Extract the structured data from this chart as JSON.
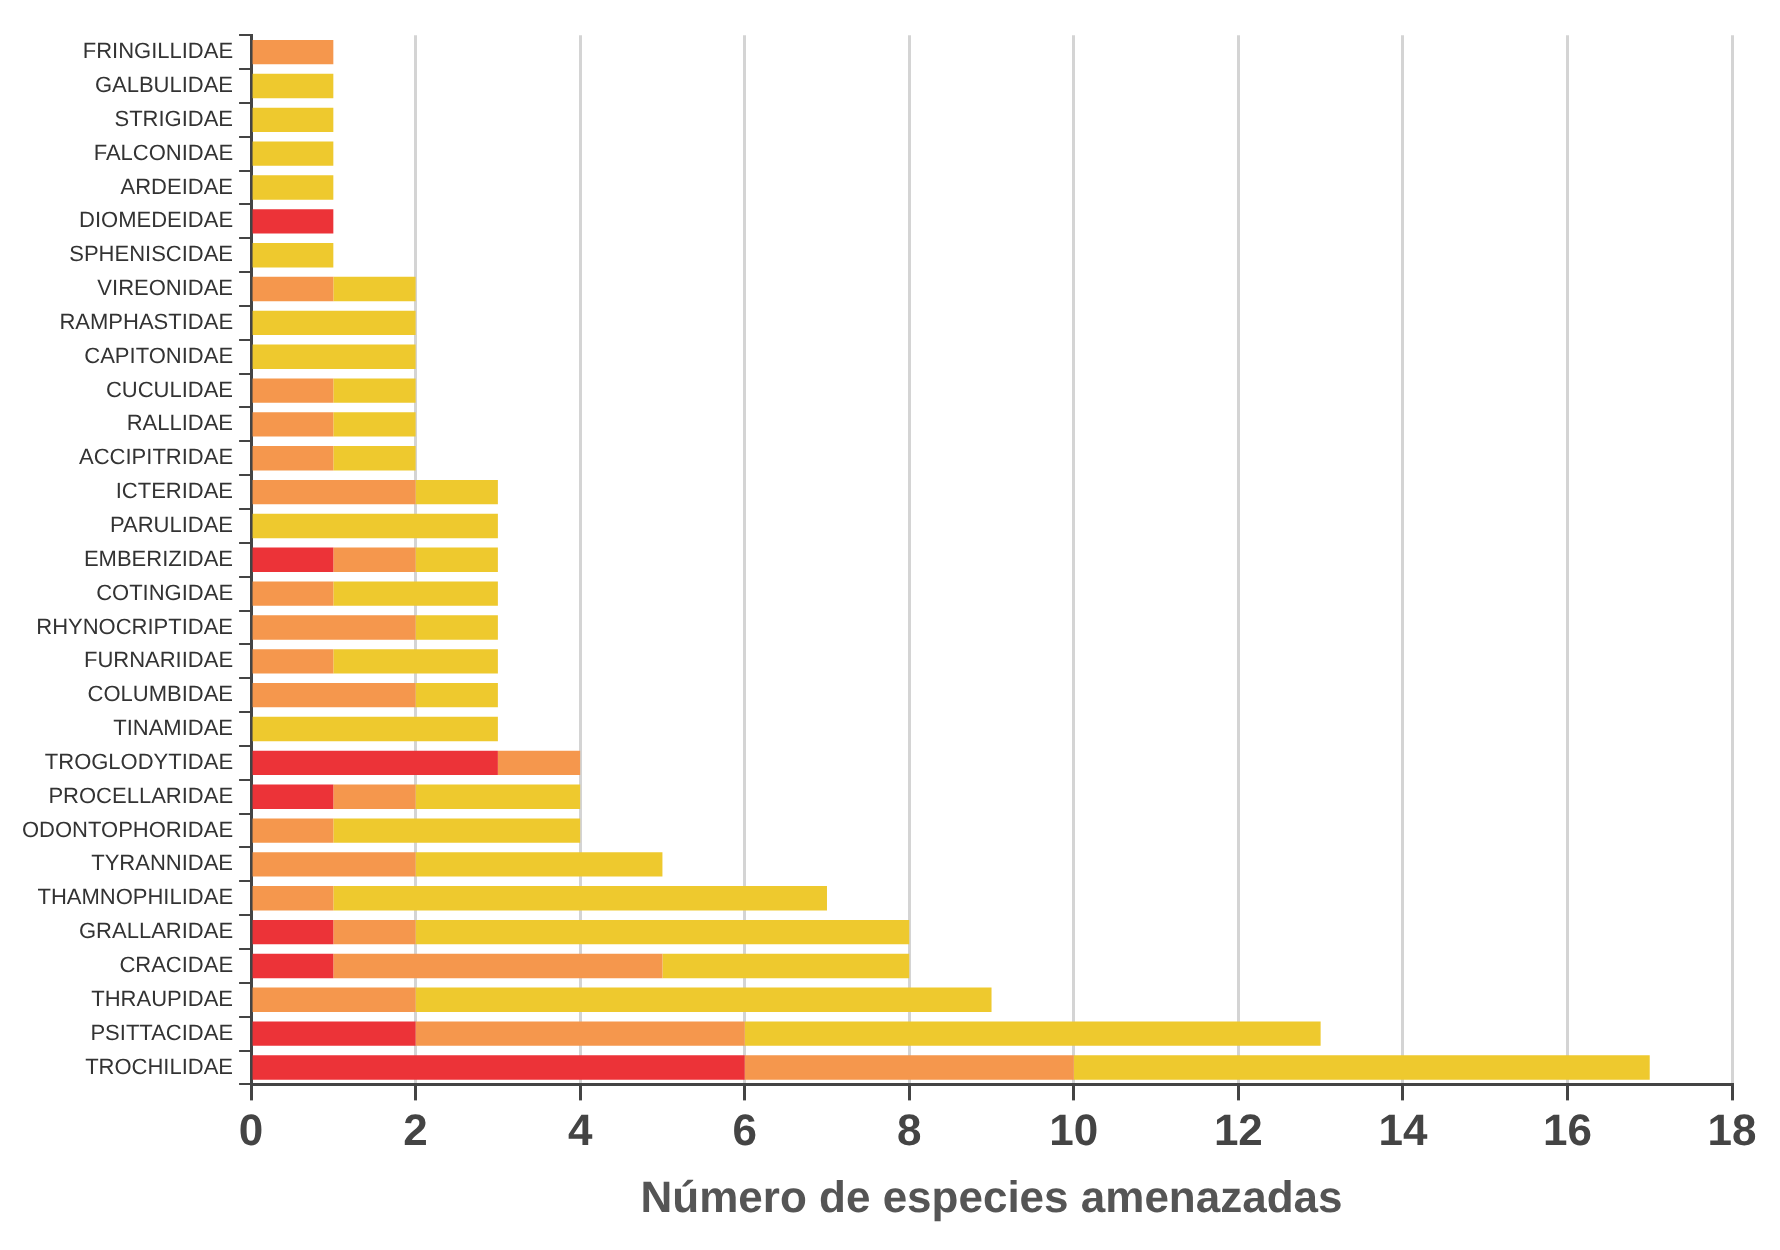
{
  "chart_data": {
    "type": "bar",
    "orientation": "horizontal",
    "stacked": true,
    "xlabel": "Número de especies amenazadas",
    "categories": [
      "FRINGILLIDAE",
      "GALBULIDAE",
      "STRIGIDAE",
      "FALCONIDAE",
      "ARDEIDAE",
      "DIOMEDEIDAE",
      "SPHENISCIDAE",
      "VIREONIDAE",
      "RAMPHASTIDAE",
      "CAPITONIDAE",
      "CUCULIDAE",
      "RALLIDAE",
      "ACCIPITRIDAE",
      "ICTERIDAE",
      "PARULIDAE",
      "EMBERIZIDAE",
      "COTINGIDAE",
      "RHYNOCRIPTIDAE",
      "FURNARIIDAE",
      "COLUMBIDAE",
      "TINAMIDAE",
      "TROGLODYTIDAE",
      "PROCELLARIDAE",
      "ODONTOPHORIDAE",
      "TYRANNIDAE",
      "THAMNOPHILIDAE",
      "GRALLARIDAE",
      "CRACIDAE",
      "THRAUPIDAE",
      "PSITTACIDAE",
      "TROCHILIDAE"
    ],
    "series": [
      {
        "color": "#ec3338",
        "values": [
          0,
          0,
          0,
          0,
          0,
          1,
          0,
          0,
          0,
          0,
          0,
          0,
          0,
          0,
          0,
          1,
          0,
          0,
          0,
          0,
          0,
          3,
          1,
          0,
          0,
          0,
          1,
          1,
          0,
          2,
          6
        ]
      },
      {
        "color": "#f5974d",
        "values": [
          1,
          0,
          0,
          0,
          0,
          0,
          0,
          1,
          0,
          0,
          1,
          1,
          1,
          2,
          0,
          1,
          1,
          2,
          1,
          2,
          0,
          1,
          1,
          1,
          2,
          1,
          1,
          4,
          2,
          4,
          4
        ]
      },
      {
        "color": "#eec92e",
        "values": [
          0,
          1,
          1,
          1,
          1,
          0,
          1,
          1,
          2,
          2,
          1,
          1,
          1,
          1,
          3,
          1,
          2,
          1,
          2,
          1,
          3,
          0,
          2,
          3,
          3,
          6,
          6,
          3,
          7,
          7,
          7
        ]
      }
    ],
    "xlim": [
      0,
      18
    ],
    "xticks": [
      0,
      2,
      4,
      6,
      8,
      10,
      12,
      14,
      16,
      18
    ],
    "grid": "x",
    "legend": false
  }
}
